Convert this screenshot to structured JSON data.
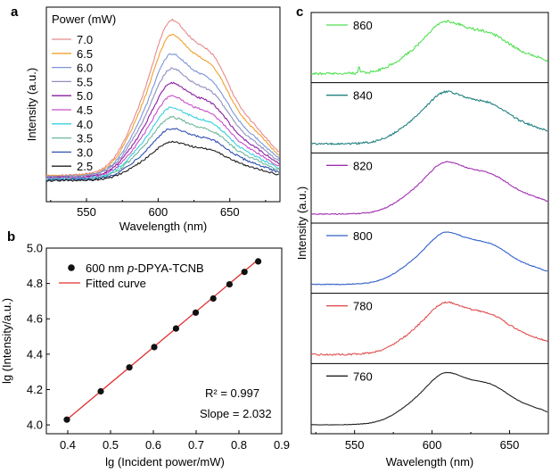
{
  "panel_labels": {
    "a": "a",
    "b": "b",
    "c": "c"
  },
  "chart_data": [
    {
      "id": "a",
      "type": "line",
      "title": "",
      "xlabel": "Wavelength (nm)",
      "ylabel": "Intensity (a.u.)",
      "xlim": [
        522,
        685
      ],
      "ylim": [
        0,
        1.1
      ],
      "xticks": [
        550,
        600,
        650
      ],
      "yticks": [],
      "grid": false,
      "legend_title": "Power (mW)",
      "legend_position": "top-left",
      "series": [
        {
          "name": "7.0",
          "color": "#e88a8a",
          "peak": 1.0,
          "noise": 0.012
        },
        {
          "name": "6.5",
          "color": "#f0a030",
          "peak": 0.91,
          "noise": 0.012
        },
        {
          "name": "6.0",
          "color": "#7b96d8",
          "peak": 0.79,
          "noise": 0.012
        },
        {
          "name": "5.5",
          "color": "#8f8fbf",
          "peak": 0.7,
          "noise": 0.013
        },
        {
          "name": "5.0",
          "color": "#8a1fa2",
          "peak": 0.61,
          "noise": 0.013
        },
        {
          "name": "4.5",
          "color": "#c850c8",
          "peak": 0.53,
          "noise": 0.013
        },
        {
          "name": "4.0",
          "color": "#38d0e0",
          "peak": 0.46,
          "noise": 0.014
        },
        {
          "name": "3.5",
          "color": "#6fb898",
          "peak": 0.4,
          "noise": 0.014
        },
        {
          "name": "3.0",
          "color": "#3050b0",
          "peak": 0.33,
          "noise": 0.014
        },
        {
          "name": "2.5",
          "color": "#202020",
          "peak": 0.25,
          "noise": 0.012
        }
      ],
      "peak_wavelength": 611
    },
    {
      "id": "b",
      "type": "scatter",
      "title": "",
      "xlabel": "lg (Incident power/mW)",
      "ylabel": "lg (Intensity/a.u.)",
      "xlim": [
        0.35,
        0.9
      ],
      "ylim": [
        3.95,
        5.0
      ],
      "xticks": [
        0.4,
        0.5,
        0.6,
        0.7,
        0.8,
        0.9
      ],
      "yticks": [
        4.0,
        4.2,
        4.4,
        4.6,
        4.8,
        5.0
      ],
      "grid": false,
      "legend_position": "top-left",
      "legend": [
        {
          "kind": "marker",
          "label_prefix": "600 nm ",
          "label_italic": "p",
          "label_suffix": "-DPYA-TCNB"
        },
        {
          "kind": "line",
          "label": "Fitted curve",
          "color": "#e03030"
        }
      ],
      "points": [
        [
          0.398,
          4.03
        ],
        [
          0.477,
          4.19
        ],
        [
          0.544,
          4.325
        ],
        [
          0.602,
          4.44
        ],
        [
          0.653,
          4.545
        ],
        [
          0.699,
          4.635
        ],
        [
          0.74,
          4.715
        ],
        [
          0.778,
          4.795
        ],
        [
          0.813,
          4.865
        ],
        [
          0.845,
          4.925
        ]
      ],
      "fit_line": [
        [
          0.398,
          4.03
        ],
        [
          0.845,
          4.935
        ]
      ],
      "annotations": [
        "R² = 0.997",
        "Slope = 2.032"
      ]
    },
    {
      "id": "c",
      "type": "line",
      "title": "",
      "xlabel": "Wavelength (nm)",
      "ylabel": "Intensity (a.u.)",
      "xlim": [
        522,
        675
      ],
      "xticks": [
        550,
        600,
        650
      ],
      "grid": false,
      "stacked_panels": [
        {
          "label": "860",
          "color": "#50e050",
          "spike_at": 553,
          "noise": 0.05
        },
        {
          "label": "840",
          "color": "#208080",
          "noise": 0.035
        },
        {
          "label": "820",
          "color": "#a030b0",
          "noise": 0.02
        },
        {
          "label": "800",
          "color": "#3060c8",
          "noise": 0.015
        },
        {
          "label": "780",
          "color": "#e05050",
          "noise": 0.03
        },
        {
          "label": "760",
          "color": "#202020",
          "noise": 0.01
        }
      ]
    }
  ]
}
